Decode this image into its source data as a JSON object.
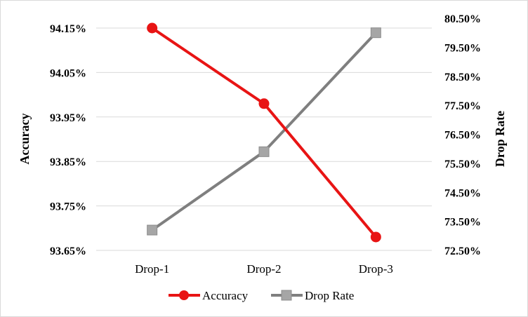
{
  "chart_data": {
    "type": "line",
    "title": "",
    "categories": [
      "Drop-1",
      "Drop-2",
      "Drop-3"
    ],
    "y_left": {
      "label": "Accuracy",
      "ticks": [
        "93.65%",
        "93.75%",
        "93.85%",
        "93.95%",
        "94.05%",
        "94.15%"
      ],
      "range": [
        93.65,
        94.15
      ]
    },
    "y_right": {
      "label": "Drop Rate",
      "ticks": [
        "72.50%",
        "73.50%",
        "74.50%",
        "75.50%",
        "76.50%",
        "77.50%",
        "78.50%",
        "79.50%",
        "80.50%"
      ],
      "range": [
        72.5,
        80.5
      ]
    },
    "series": [
      {
        "name": "Accuracy",
        "axis": "left",
        "values": [
          94.15,
          93.98,
          93.68
        ],
        "color": "#e81414",
        "marker": "circle"
      },
      {
        "name": "Drop Rate",
        "axis": "right",
        "values": [
          73.2,
          75.9,
          80.0
        ],
        "color": "#7f7f7f",
        "marker": "square"
      }
    ],
    "grid": true,
    "legend": "bottom"
  }
}
